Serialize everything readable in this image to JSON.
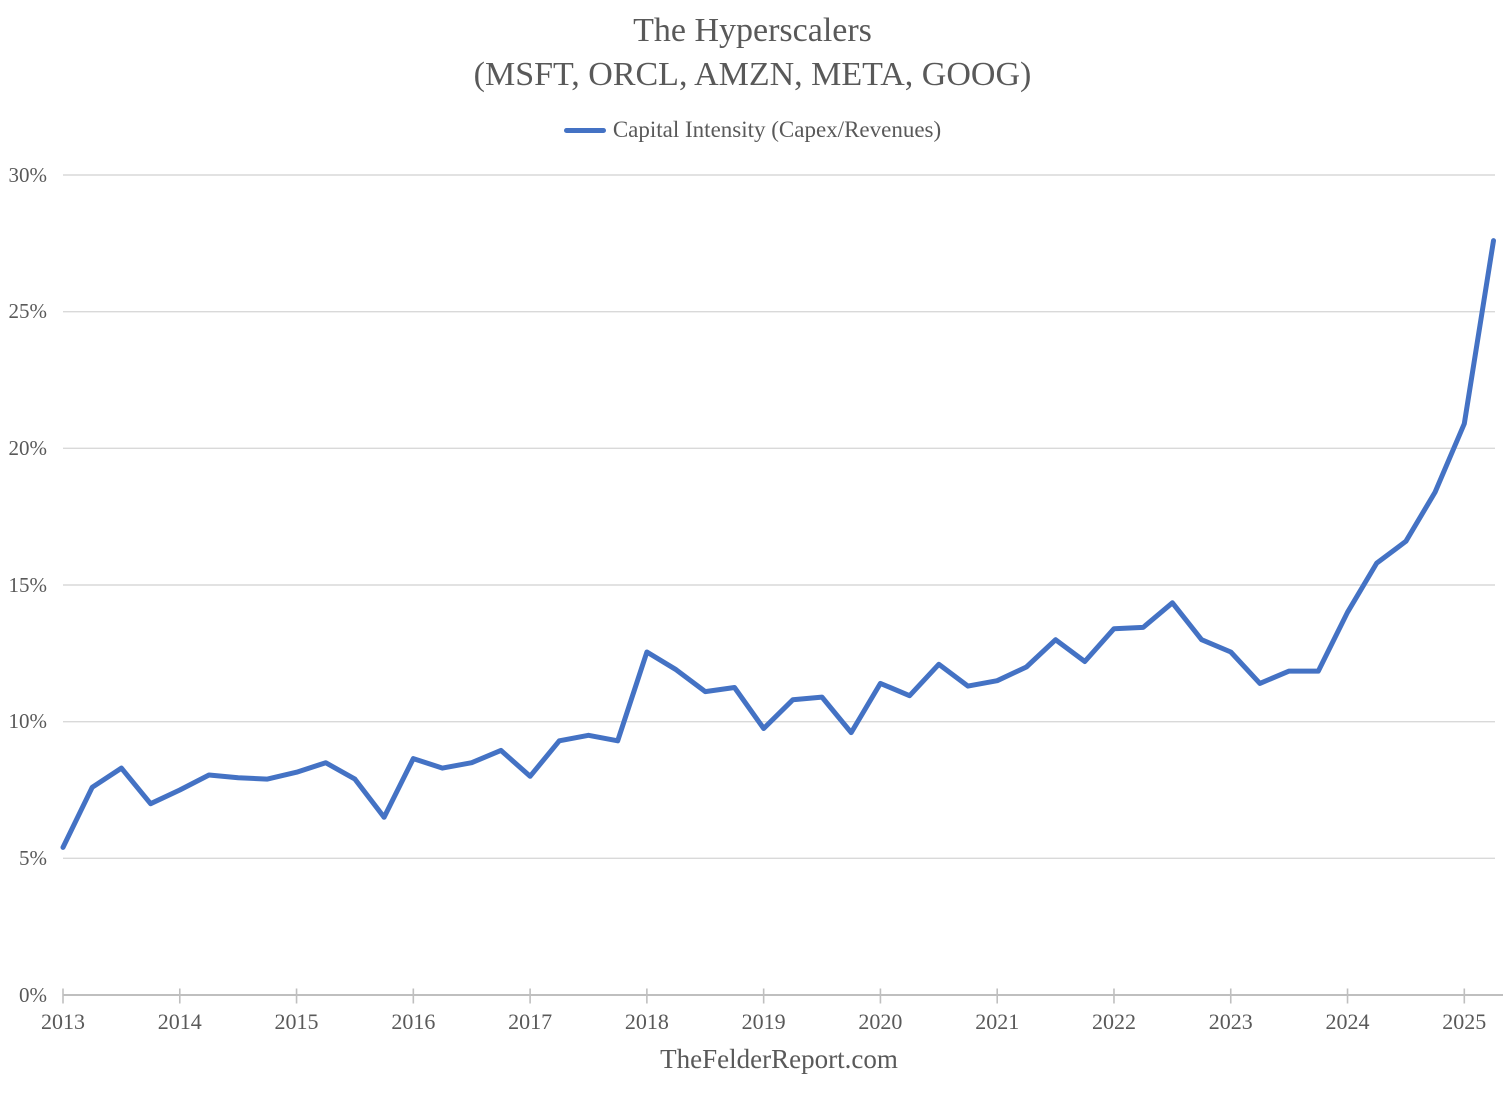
{
  "header": {
    "title": "The Hyperscalers",
    "subtitle": "(MSFT, ORCL, AMZN, META, GOOG)"
  },
  "legend": {
    "label": "Capital Intensity (Capex/Revenues)"
  },
  "footer": {
    "text": "TheFelderReport.com"
  },
  "colors": {
    "line": "#4472C4",
    "gridline": "#D9D9D9",
    "axis": "#BFBFBF",
    "text": "#595959"
  },
  "chart_data": {
    "type": "line",
    "title": "The Hyperscalers (MSFT, ORCL, AMZN, META, GOOG)",
    "series": [
      {
        "name": "Capital Intensity (Capex/Revenues)",
        "values": [
          5.4,
          7.6,
          8.3,
          7.0,
          7.5,
          8.05,
          7.95,
          7.9,
          8.15,
          8.5,
          7.9,
          6.5,
          8.65,
          8.3,
          8.5,
          8.95,
          8.0,
          9.3,
          9.5,
          9.3,
          12.55,
          11.9,
          11.1,
          11.25,
          9.75,
          10.8,
          10.9,
          9.6,
          11.4,
          10.95,
          12.1,
          11.3,
          11.5,
          12.0,
          13.0,
          12.2,
          13.4,
          13.45,
          14.35,
          13.0,
          12.55,
          11.4,
          11.85,
          11.85,
          14.0,
          15.8,
          16.6,
          18.4,
          20.9,
          27.6
        ]
      }
    ],
    "x": [
      "2013Q1",
      "2013Q2",
      "2013Q3",
      "2013Q4",
      "2014Q1",
      "2014Q2",
      "2014Q3",
      "2014Q4",
      "2015Q1",
      "2015Q2",
      "2015Q3",
      "2015Q4",
      "2016Q1",
      "2016Q2",
      "2016Q3",
      "2016Q4",
      "2017Q1",
      "2017Q2",
      "2017Q3",
      "2017Q4",
      "2018Q1",
      "2018Q2",
      "2018Q3",
      "2018Q4",
      "2019Q1",
      "2019Q2",
      "2019Q3",
      "2019Q4",
      "2020Q1",
      "2020Q2",
      "2020Q3",
      "2020Q4",
      "2021Q1",
      "2021Q2",
      "2021Q3",
      "2021Q4",
      "2022Q1",
      "2022Q2",
      "2022Q3",
      "2022Q4",
      "2023Q1",
      "2023Q2",
      "2023Q3",
      "2023Q4",
      "2024Q1",
      "2024Q2",
      "2024Q3",
      "2024Q4",
      "2025Q1",
      "2025Q2"
    ],
    "x_tick_labels": [
      "2013",
      "2014",
      "2015",
      "2016",
      "2017",
      "2018",
      "2019",
      "2020",
      "2021",
      "2022",
      "2023",
      "2024",
      "2025"
    ],
    "y_tick_labels": [
      "30%",
      "25%",
      "20%",
      "15%",
      "10%",
      "5%",
      "0%"
    ],
    "ylim": [
      0,
      30
    ],
    "ytick_step": 5,
    "ytick_format": "percent",
    "xlabel": "",
    "ylabel": "",
    "grid": "horizontal-only",
    "legend_position": "top"
  }
}
